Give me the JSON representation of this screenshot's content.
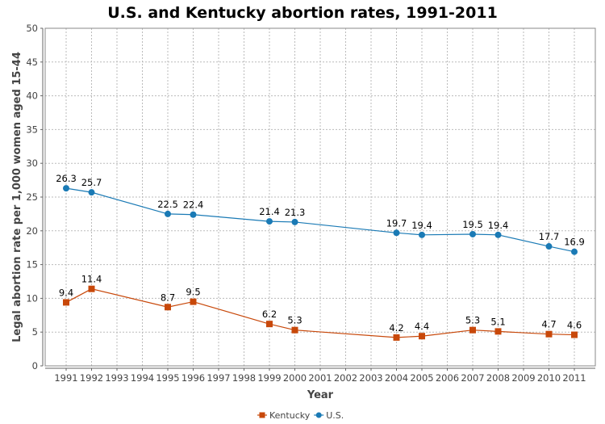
{
  "chart_data": {
    "type": "line",
    "title": "U.S. and Kentucky abortion rates, 1991-2011",
    "xlabel": "Year",
    "ylabel": "Legal abortion rate per 1,000 women aged 15-44",
    "x_ticks": [
      "1991",
      "1992",
      "1993",
      "1994",
      "1995",
      "1996",
      "1997",
      "1998",
      "1999",
      "2000",
      "2001",
      "2002",
      "2003",
      "2004",
      "2005",
      "2006",
      "2007",
      "2008",
      "2009",
      "2010",
      "2011"
    ],
    "xlim": [
      1991,
      2011
    ],
    "y_ticks": [
      "0",
      "5",
      "10",
      "15",
      "20",
      "25",
      "30",
      "35",
      "40",
      "45",
      "50"
    ],
    "ylim": [
      0,
      50
    ],
    "grid": true,
    "legend_position": "bottom-center",
    "series": [
      {
        "name": "Kentucky",
        "color": "#c8480a",
        "marker": "square",
        "x": [
          1991,
          1992,
          1995,
          1996,
          1999,
          2000,
          2004,
          2005,
          2007,
          2008,
          2010,
          2011
        ],
        "values": [
          9.4,
          11.4,
          8.7,
          9.5,
          6.2,
          5.3,
          4.2,
          4.4,
          5.3,
          5.1,
          4.7,
          4.6
        ],
        "labels": [
          "9.4",
          "11.4",
          "8.7",
          "9.5",
          "6.2",
          "5.3",
          "4.2",
          "4.4",
          "5.3",
          "5.1",
          "4.7",
          "4.6"
        ]
      },
      {
        "name": "U.S.",
        "color": "#1a7ab5",
        "marker": "circle",
        "x": [
          1991,
          1992,
          1995,
          1996,
          1999,
          2000,
          2004,
          2005,
          2007,
          2008,
          2010,
          2011
        ],
        "values": [
          26.3,
          25.7,
          22.5,
          22.4,
          21.4,
          21.3,
          19.7,
          19.4,
          19.5,
          19.4,
          17.7,
          16.9
        ],
        "labels": [
          "26.3",
          "25.7",
          "22.5",
          "22.4",
          "21.4",
          "21.3",
          "19.7",
          "19.4",
          "19.5",
          "19.4",
          "17.7",
          "16.9"
        ]
      }
    ]
  }
}
